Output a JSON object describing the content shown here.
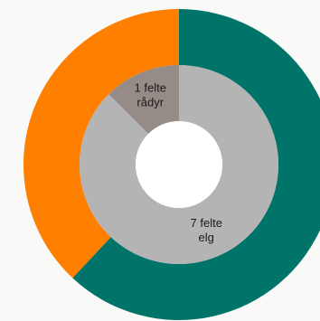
{
  "chart_data": {
    "type": "pie",
    "subtype": "double-donut",
    "rings": [
      {
        "ring": "outer",
        "slices": [
          {
            "value": 0.62,
            "color": "#007468"
          },
          {
            "value": 0.38,
            "color": "#ff8000"
          }
        ]
      },
      {
        "ring": "inner",
        "slices": [
          {
            "value": 7,
            "color": "#b4b4b4",
            "label": [
              "7 felte",
              "elg"
            ]
          },
          {
            "value": 1,
            "color": "#968c87",
            "label": [
              "1 felte",
              "rådyr"
            ]
          }
        ]
      }
    ],
    "title": "",
    "legend": "none"
  }
}
